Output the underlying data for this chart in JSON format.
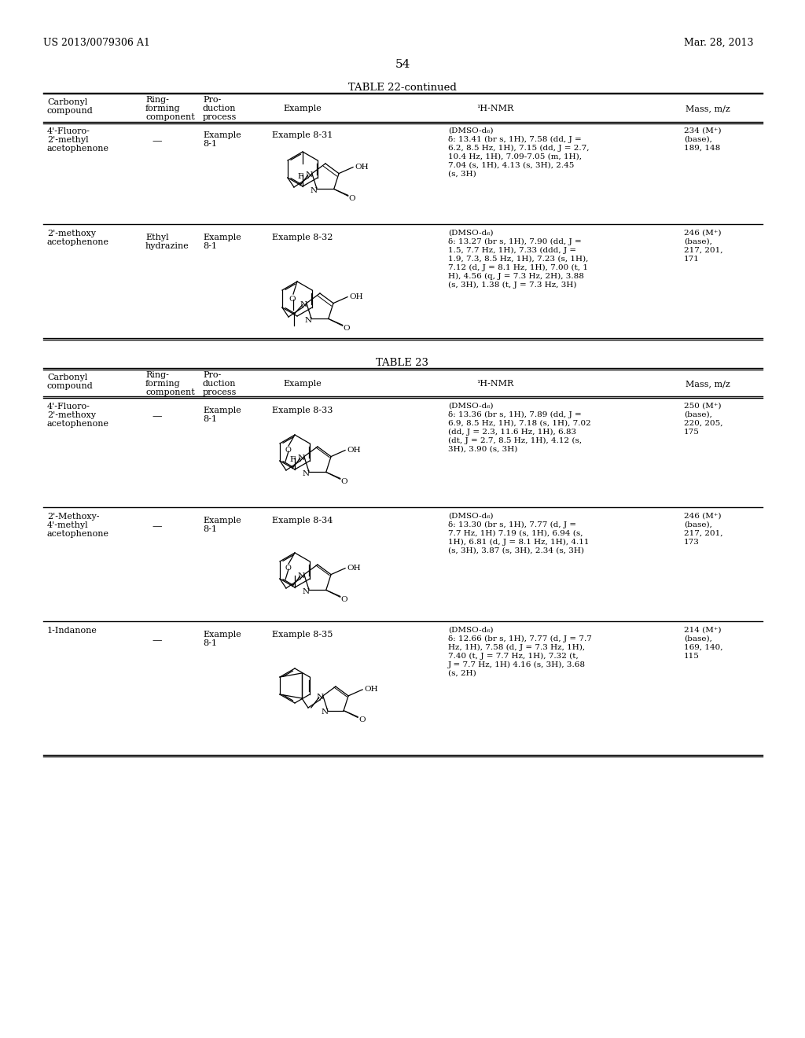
{
  "bg_color": "#ffffff",
  "page_number": "54",
  "header_left": "US 2013/0079306 A1",
  "header_right": "Mar. 28, 2013",
  "table22_title": "TABLE 22-continued",
  "table23_title": "TABLE 23",
  "col_headers": [
    "Carbonyl\ncompound",
    "Ring-\nforming\ncomponent",
    "Pro-\nduction\nprocess",
    "Example",
    "¹H-NMR",
    "Mass, m/z"
  ],
  "rows_t22": [
    {
      "carbonyl": "4'-Fluoro-\n2'-methyl\nacetophenone",
      "ring": "—",
      "production": "Example\n8-1",
      "example": "Example 8-31",
      "nmr": "(DMSO-d₆)\nδ: 13.41 (br s, 1H), 7.58 (dd, J =\n6.2, 8.5 Hz, 1H), 7.15 (dd, J = 2.7,\n10.4 Hz, 1H), 7.09-7.05 (m, 1H),\n7.04 (s, 1H), 4.13 (s, 3H), 2.45\n(s, 3H)",
      "mass": "234 (M⁺)\n(base),\n189, 148"
    },
    {
      "carbonyl": "2'-methoxy\nacetophenone",
      "ring": "Ethyl\nhydrazine",
      "production": "Example\n8-1",
      "example": "Example 8-32",
      "nmr": "(DMSO-d₆)\nδ: 13.27 (br s, 1H), 7.90 (dd, J =\n1.5, 7.7 Hz, 1H), 7.33 (ddd, J =\n1.9, 7.3, 8.5 Hz, 1H), 7.23 (s, 1H),\n7.12 (d, J = 8.1 Hz, 1H), 7.00 (t, 1\nH), 4.56 (q, J = 7.3 Hz, 2H), 3.88\n(s, 3H), 1.38 (t, J = 7.3 Hz, 3H)",
      "mass": "246 (M⁺)\n(base),\n217, 201,\n171"
    }
  ],
  "rows_t23": [
    {
      "carbonyl": "4'-Fluoro-\n2'-methoxy\nacetophenone",
      "ring": "—",
      "production": "Example\n8-1",
      "example": "Example 8-33",
      "nmr": "(DMSO-d₆)\nδ: 13.36 (br s, 1H), 7.89 (dd, J =\n6.9, 8.5 Hz, 1H), 7.18 (s, 1H), 7.02\n(dd, J = 2.3, 11.6 Hz, 1H), 6.83\n(dt, J = 2.7, 8.5 Hz, 1H), 4.12 (s,\n3H), 3.90 (s, 3H)",
      "mass": "250 (M⁺)\n(base),\n220, 205,\n175"
    },
    {
      "carbonyl": "2'-Methoxy-\n4'-methyl\nacetophenone",
      "ring": "—",
      "production": "Example\n8-1",
      "example": "Example 8-34",
      "nmr": "(DMSO-d₆)\nδ: 13.30 (br s, 1H), 7.77 (d, J =\n7.7 Hz, 1H) 7.19 (s, 1H), 6.94 (s,\n1H), 6.81 (d, J = 8.1 Hz, 1H), 4.11\n(s, 3H), 3.87 (s, 3H), 2.34 (s, 3H)",
      "mass": "246 (M⁺)\n(base),\n217, 201,\n173"
    },
    {
      "carbonyl": "1-Indanone",
      "ring": "—",
      "production": "Example\n8-1",
      "example": "Example 8-35",
      "nmr": "(DMSO-d₆)\nδ: 12.66 (br s, 1H), 7.77 (d, J = 7.7\nHz, 1H), 7.58 (d, J = 7.3 Hz, 1H),\n7.40 (t, J = 7.7 Hz, 1H), 7.32 (t,\nJ = 7.7 Hz, 1H) 4.16 (s, 3H), 3.68\n(s, 2H)",
      "mass": "214 (M⁺)\n(base),\n169, 140,\n115"
    }
  ]
}
